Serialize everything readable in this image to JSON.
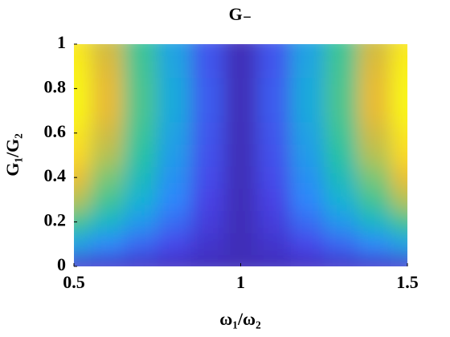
{
  "chart_data": {
    "type": "heatmap",
    "title": "G₋",
    "x_label": "ω₁/ω₂",
    "y_label": "G₁/G₂",
    "x": [
      0.5,
      0.6,
      0.7,
      0.8,
      0.9,
      1,
      1.1,
      1.2,
      1.3,
      1.4,
      1.5
    ],
    "y": [
      0,
      0.1,
      0.2,
      0.3,
      0.4,
      0.5,
      0.6,
      0.7,
      0.8,
      0.9,
      1
    ],
    "z": [
      [
        0.08,
        0.07,
        0.06,
        0.05,
        0.04,
        0.03,
        0.04,
        0.05,
        0.06,
        0.07,
        0.08
      ],
      [
        0.33,
        0.26,
        0.19,
        0.13,
        0.07,
        0.03,
        0.07,
        0.13,
        0.19,
        0.26,
        0.33
      ],
      [
        0.53,
        0.41,
        0.3,
        0.2,
        0.1,
        0.03,
        0.1,
        0.2,
        0.3,
        0.41,
        0.53
      ],
      [
        0.68,
        0.53,
        0.38,
        0.25,
        0.12,
        0.03,
        0.12,
        0.25,
        0.38,
        0.53,
        0.68
      ],
      [
        0.78,
        0.6,
        0.44,
        0.28,
        0.14,
        0.03,
        0.14,
        0.28,
        0.44,
        0.6,
        0.78
      ],
      [
        0.88,
        0.68,
        0.49,
        0.31,
        0.15,
        0.03,
        0.15,
        0.31,
        0.49,
        0.68,
        0.88
      ],
      [
        0.93,
        0.72,
        0.52,
        0.33,
        0.16,
        0.03,
        0.16,
        0.33,
        0.52,
        0.72,
        0.93
      ],
      [
        0.98,
        0.76,
        0.54,
        0.35,
        0.17,
        0.03,
        0.17,
        0.35,
        0.54,
        0.76,
        0.98
      ],
      [
        0.98,
        0.76,
        0.54,
        0.35,
        0.17,
        0.03,
        0.17,
        0.35,
        0.54,
        0.76,
        0.98
      ],
      [
        0.96,
        0.74,
        0.53,
        0.34,
        0.16,
        0.03,
        0.16,
        0.34,
        0.53,
        0.74,
        0.96
      ],
      [
        0.93,
        0.72,
        0.52,
        0.33,
        0.16,
        0.03,
        0.16,
        0.33,
        0.52,
        0.72,
        0.93
      ]
    ],
    "clim": [
      0,
      1
    ],
    "colormap": [
      "#3e26a8",
      "#4743e8",
      "#2f87fb",
      "#13b1d6",
      "#2ac3a0",
      "#8ec76a",
      "#e5b935",
      "#fbd825",
      "#f9fb0e"
    ],
    "xlim": [
      0.5,
      1.5
    ],
    "xticks": [
      0.5,
      1,
      1.5
    ],
    "ylim": [
      0,
      1
    ],
    "yticks": [
      0,
      0.2,
      0.4,
      0.6,
      0.8,
      1
    ]
  }
}
